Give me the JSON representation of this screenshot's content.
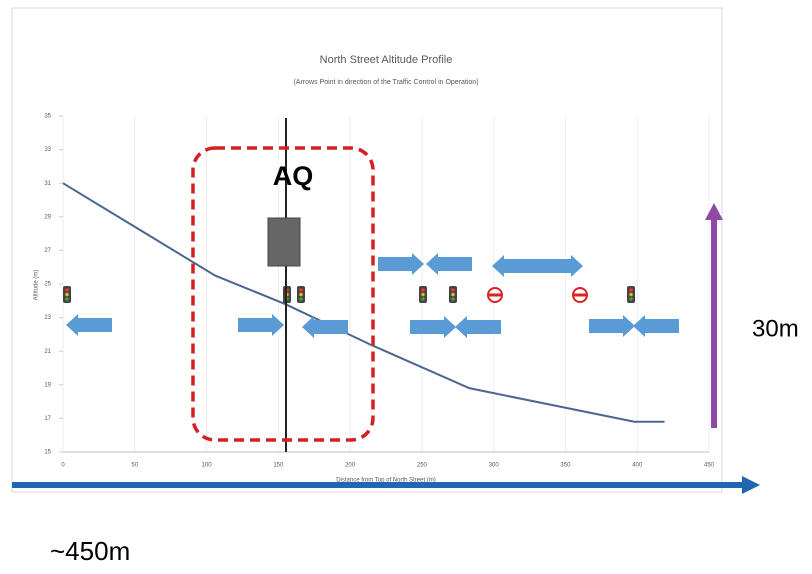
{
  "chart_data": {
    "type": "line",
    "title": "North Street Altitude Profile",
    "subtitle": "(Arrows Point in direction of the Traffic Control in Operation)",
    "x_label": "Distance from Top of North Street (m)",
    "y_label": "Altitude (m)",
    "x": [
      0,
      106,
      155,
      214,
      283,
      398,
      419
    ],
    "values": [
      31,
      25.5,
      23.8,
      21.4,
      18.8,
      16.8,
      16.8
    ],
    "color": "#4a6690",
    "xlim": [
      0,
      450
    ],
    "xticks": [
      0,
      50,
      100,
      150,
      200,
      250,
      300,
      350,
      400,
      450
    ],
    "ylim": [
      15,
      35
    ],
    "yticks": [
      15,
      17,
      19,
      21,
      23,
      25,
      27,
      29,
      31,
      33,
      35
    ],
    "grid": true,
    "annotations": [
      "AQ",
      "30m",
      "~450m"
    ]
  }
}
